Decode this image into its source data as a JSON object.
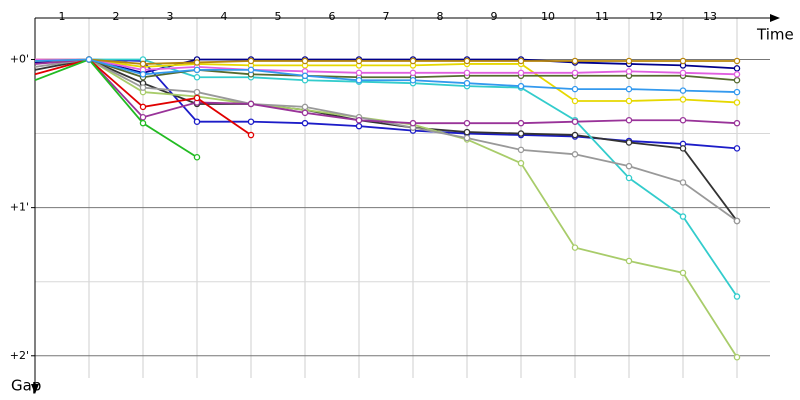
{
  "chart_data": {
    "type": "line",
    "x_title": "Time",
    "y_title": "Gap",
    "categories": [
      "1",
      "2",
      "3",
      "4",
      "5",
      "6",
      "7",
      "8",
      "9",
      "10",
      "11",
      "12",
      "13"
    ],
    "x": [
      0,
      1,
      2,
      3,
      4,
      5,
      6,
      7,
      8,
      9,
      10,
      11,
      12,
      13
    ],
    "xlim": [
      0,
      14
    ],
    "ylim": [
      -0.28,
      2.15
    ],
    "y_inverted": true,
    "yticks": [
      {
        "value": 0,
        "label": "+0'"
      },
      {
        "value": 1,
        "label": "+1'"
      },
      {
        "value": 2,
        "label": "+2'"
      }
    ],
    "minor_yticks": [
      0.5,
      1.5
    ],
    "grid": true,
    "series": [
      {
        "color": "#00008b",
        "values": [
          0.02,
          0,
          0.09,
          0,
          0,
          0,
          0,
          0,
          0,
          0,
          0.02,
          0.03,
          0.04,
          0.06
        ]
      },
      {
        "color": "#1c1cc8",
        "values": [
          0.01,
          0,
          0.01,
          0.42,
          0.42,
          0.43,
          0.45,
          0.48,
          0.5,
          0.51,
          0.52,
          0.55,
          0.57,
          0.6
        ]
      },
      {
        "color": "#333333",
        "values": [
          0.07,
          0,
          0.16,
          0.3,
          0.3,
          0.34,
          0.41,
          0.46,
          0.49,
          0.5,
          0.51,
          0.56,
          0.6,
          1.09
        ]
      },
      {
        "color": "#33cccc",
        "values": [
          0,
          0,
          0,
          0.12,
          0.12,
          0.14,
          0.15,
          0.16,
          0.18,
          0.19,
          0.41,
          0.8,
          1.06,
          1.6
        ]
      },
      {
        "color": "#a8cc6a",
        "values": [
          0,
          0,
          0.22,
          0.25,
          0.3,
          0.34,
          0.39,
          0.44,
          0.54,
          0.7,
          1.27,
          1.36,
          1.44,
          2.01
        ]
      },
      {
        "color": "#999999",
        "values": [
          0.05,
          0,
          0.19,
          0.22,
          0.3,
          0.32,
          0.39,
          0.46,
          0.53,
          0.61,
          0.64,
          0.72,
          0.83,
          1.09
        ]
      },
      {
        "color": "#e6d800",
        "values": [
          0,
          0,
          0.05,
          0.03,
          0.04,
          0.04,
          0.04,
          0.04,
          0.03,
          0.03,
          0.28,
          0.28,
          0.27,
          0.29
        ]
      },
      {
        "color": "#993399",
        "values": [
          0.03,
          0,
          0.39,
          0.29,
          0.3,
          0.36,
          0.41,
          0.43,
          0.43,
          0.43,
          0.42,
          0.41,
          0.41,
          0.43
        ]
      },
      {
        "color": "#e00000",
        "values": [
          0.1,
          0,
          0.32,
          0.26,
          0.51,
          null,
          null,
          null,
          null,
          null,
          null,
          null,
          null,
          null
        ]
      },
      {
        "color": "#22bb22",
        "values": [
          0.14,
          0,
          0.43,
          0.66,
          null,
          null,
          null,
          null,
          null,
          null,
          null,
          null,
          null,
          null
        ]
      },
      {
        "color": "#556b2f",
        "values": [
          0.01,
          0,
          0.12,
          0.07,
          0.1,
          0.11,
          0.12,
          0.12,
          0.11,
          0.11,
          0.11,
          0.11,
          0.11,
          0.14
        ]
      },
      {
        "color": "#e060e0",
        "values": [
          0,
          0,
          0.07,
          0.05,
          0.07,
          0.08,
          0.09,
          0.09,
          0.09,
          0.09,
          0.09,
          0.08,
          0.09,
          0.1
        ]
      },
      {
        "color": "#b8860b",
        "values": [
          0.01,
          0,
          0.03,
          0.02,
          0.01,
          0.01,
          0.01,
          0.01,
          0.01,
          0.01,
          0.01,
          0.01,
          0.01,
          0.01
        ]
      },
      {
        "color": "#3399ee",
        "values": [
          0.01,
          0,
          0.1,
          0.07,
          0.07,
          0.11,
          0.14,
          0.14,
          0.16,
          0.18,
          0.2,
          0.2,
          0.21,
          0.22
        ]
      }
    ]
  }
}
